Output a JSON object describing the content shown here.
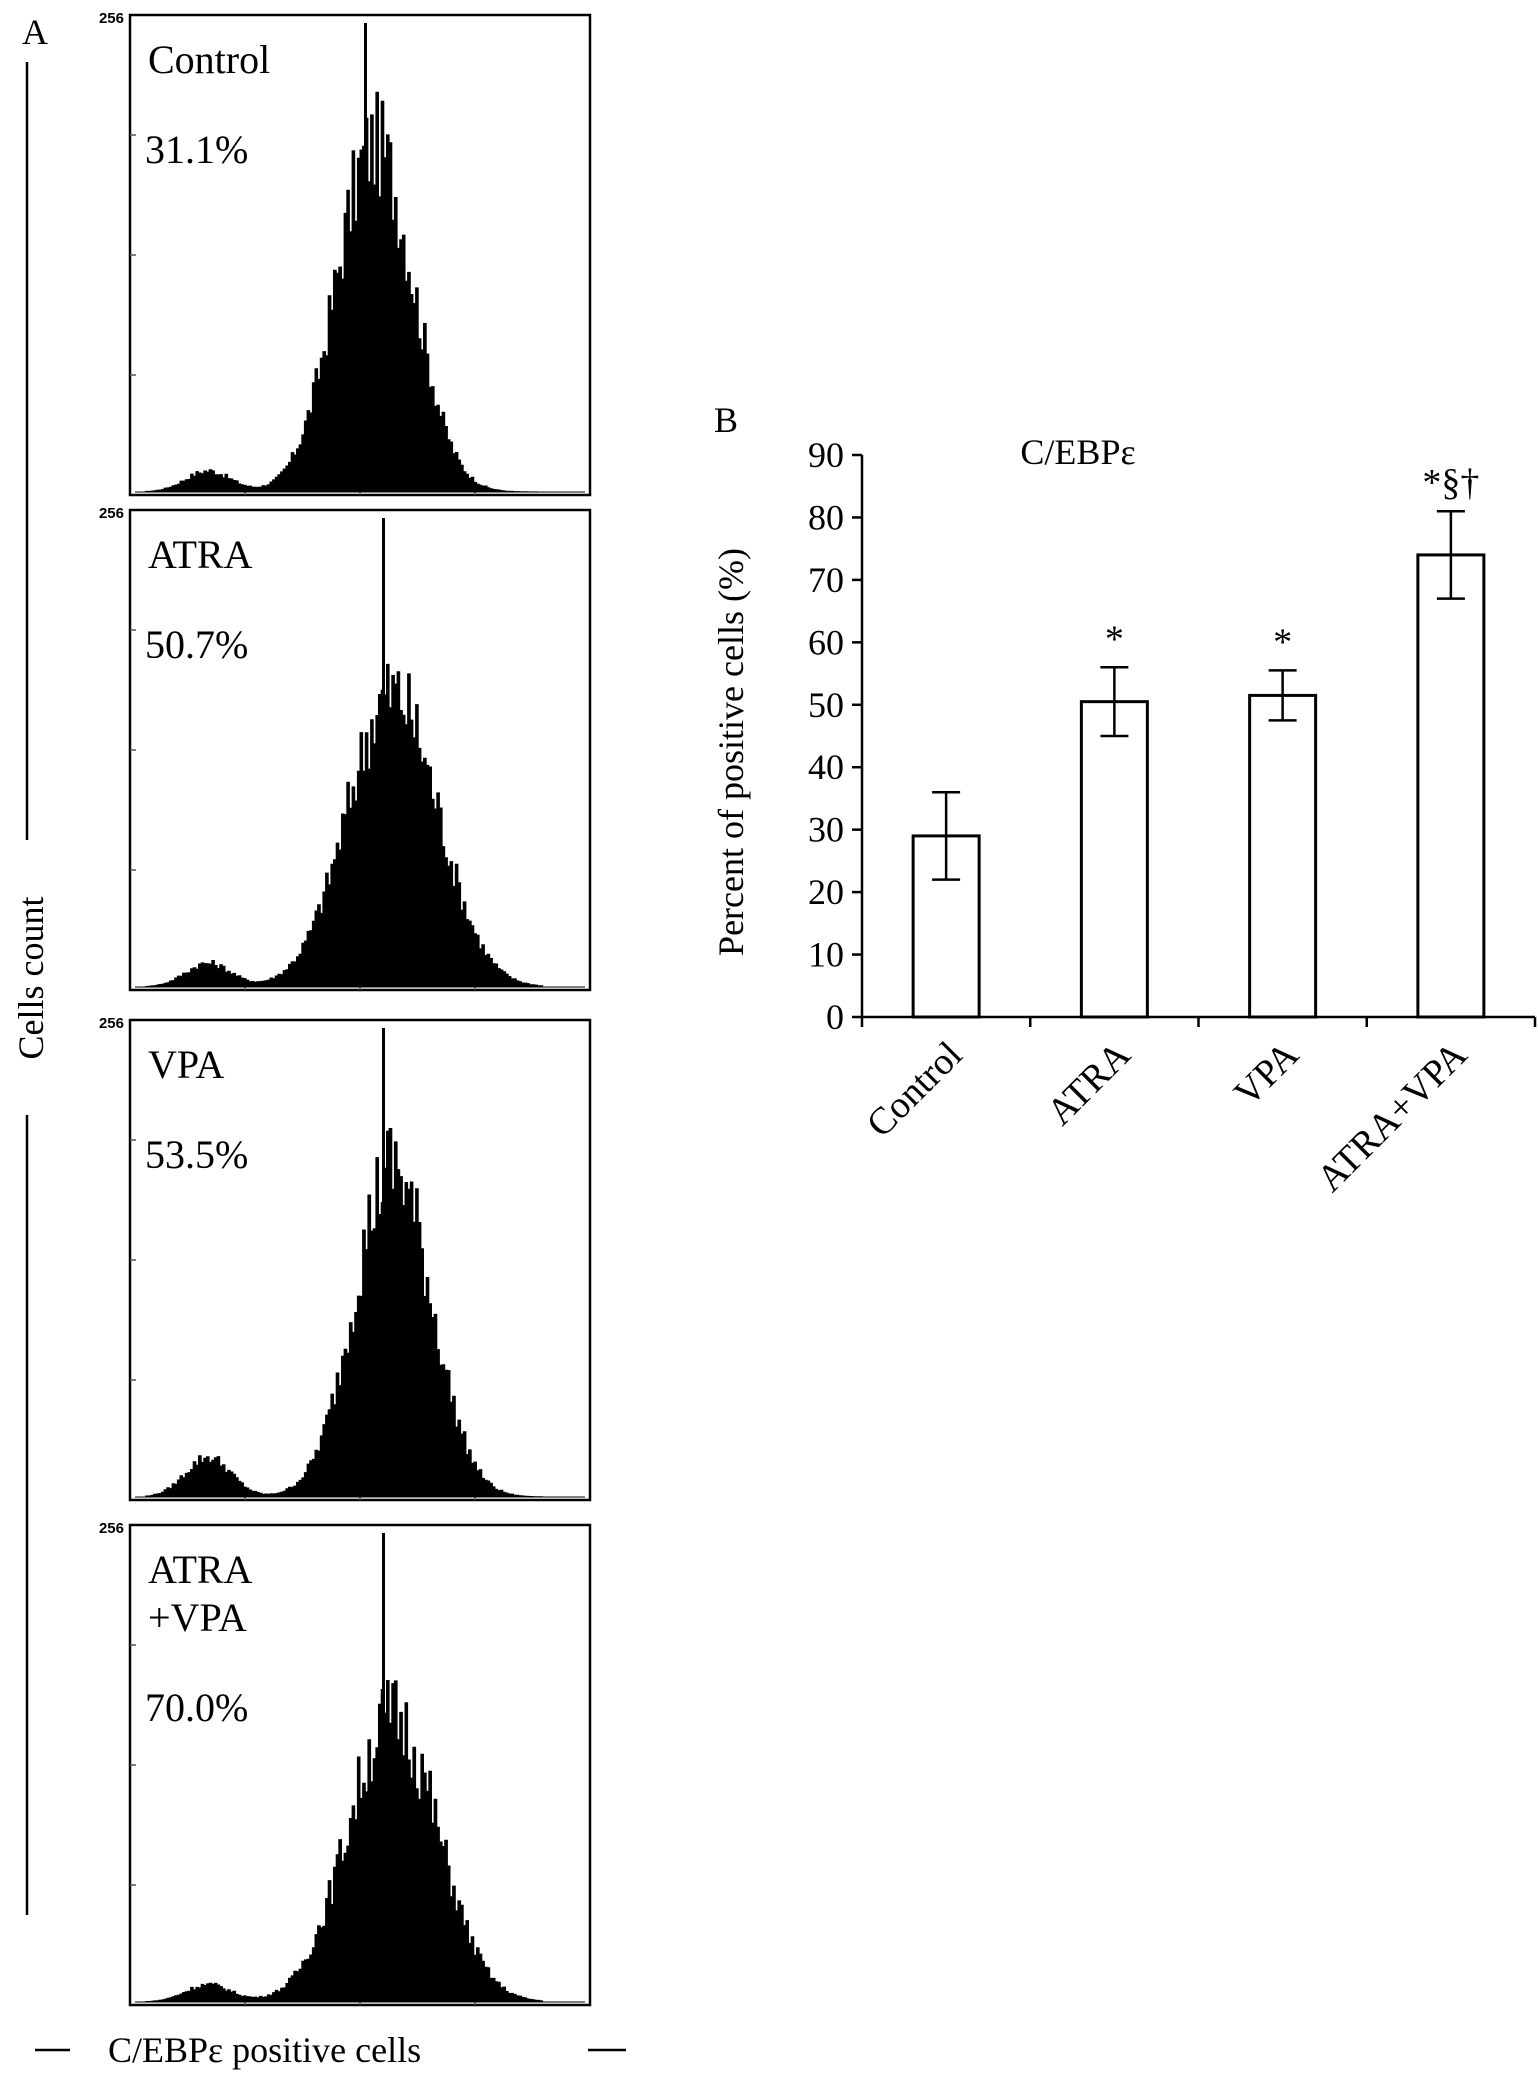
{
  "panel_a": {
    "label": "A",
    "y_axis_label": "Cells count",
    "x_axis_label": "C/EBPε positive cells",
    "y_max_tick": "256",
    "histograms": [
      {
        "name": "Control",
        "label_lines": [
          "Control"
        ],
        "percent": "31.1%",
        "peak": 0.53,
        "width": 0.085,
        "shoulder": 0.06,
        "height": 0.78
      },
      {
        "name": "ATRA",
        "label_lines": [
          "ATRA"
        ],
        "percent": "50.7%",
        "peak": 0.57,
        "width": 0.1,
        "shoulder": 0.08,
        "height": 0.66
      },
      {
        "name": "VPA",
        "label_lines": [
          "VPA"
        ],
        "percent": "53.5%",
        "peak": 0.57,
        "width": 0.085,
        "shoulder": 0.12,
        "height": 0.74
      },
      {
        "name": "ATRA+VPA",
        "label_lines": [
          "ATRA",
          "+VPA"
        ],
        "percent": "70.0%",
        "peak": 0.57,
        "width": 0.1,
        "shoulder": 0.06,
        "height": 0.64
      }
    ]
  },
  "chart_data": {
    "type": "bar",
    "panel_label": "B",
    "title": "C/EBPε",
    "xlabel": "",
    "ylabel": "Percent of positive cells (%)",
    "ylim": [
      0,
      90
    ],
    "yticks": [
      0,
      10,
      20,
      30,
      40,
      50,
      60,
      70,
      80,
      90
    ],
    "categories": [
      "Control",
      "ATRA",
      "VPA",
      "ATRA+VPA"
    ],
    "values": [
      29,
      50.5,
      51.5,
      74
    ],
    "errors": [
      7,
      5.5,
      4,
      7
    ],
    "annotations": [
      "",
      "*",
      "*",
      "*§†"
    ],
    "bar_fill": "#ffffff",
    "bar_stroke": "#000000",
    "grid": false
  }
}
